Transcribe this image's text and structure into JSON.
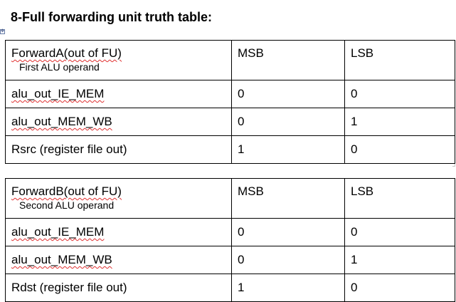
{
  "document": {
    "heading": "8-Full forwarding unit truth table:",
    "move_handle_glyph": "✥"
  },
  "tables": [
    {
      "header": {
        "signal": "ForwardA(out of FU)",
        "signal_note": "First ALU operand",
        "msb": "MSB",
        "lsb": "LSB"
      },
      "rows": [
        {
          "source": "alu_out_IE_MEM",
          "msb": "0",
          "lsb": "0"
        },
        {
          "source": "alu_out_MEM_WB",
          "msb": "0",
          "lsb": "1"
        },
        {
          "source": "Rsrc (register file out)",
          "msb": "1",
          "lsb": "0"
        }
      ]
    },
    {
      "header": {
        "signal": "ForwardB(out of FU)",
        "signal_note": "Second ALU operand",
        "msb": "MSB",
        "lsb": "LSB"
      },
      "rows": [
        {
          "source": "alu_out_IE_MEM",
          "msb": "0",
          "lsb": "0"
        },
        {
          "source": "alu_out_MEM_WB",
          "msb": "0",
          "lsb": "1"
        },
        {
          "source": "Rdst (register file out)",
          "msb": "1",
          "lsb": "0"
        }
      ]
    }
  ]
}
